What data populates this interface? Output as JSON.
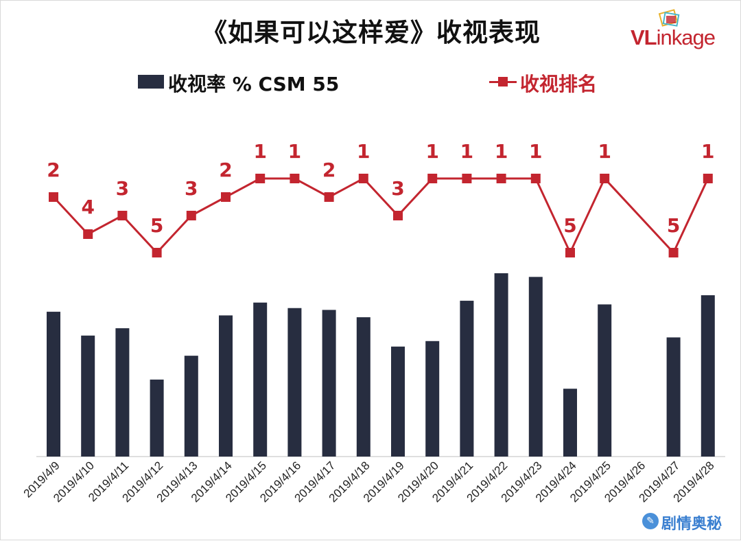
{
  "title": "《如果可以这样爱》收视表现",
  "logo": {
    "v": "VL",
    "rest": "inkage"
  },
  "legend": {
    "bar_label": "收视率 % CSM 55",
    "line_label": "收视排名"
  },
  "watermark": {
    "icon": "tencent-news-icon",
    "text": "剧情奥秘"
  },
  "colors": {
    "bar": "#272d40",
    "line": "#c3252f",
    "title": "#111111"
  },
  "chart_data": {
    "type": "bar",
    "title": "《如果可以这样爱》收视表现",
    "categories": [
      "2019/4/9",
      "2019/4/10",
      "2019/4/11",
      "2019/4/12",
      "2019/4/13",
      "2019/4/14",
      "2019/4/15",
      "2019/4/16",
      "2019/4/17",
      "2019/4/18",
      "2019/4/19",
      "2019/4/20",
      "2019/4/21",
      "2019/4/22",
      "2019/4/23",
      "2019/4/24",
      "2019/4/25",
      "2019/4/26",
      "2019/4/27",
      "2019/4/28"
    ],
    "series": [
      {
        "name": "收视率 % CSM 55",
        "type": "bar",
        "values": [
          0.79,
          0.66,
          0.7,
          0.42,
          0.55,
          0.77,
          0.84,
          0.81,
          0.8,
          0.76,
          0.6,
          0.63,
          0.85,
          1.0,
          0.98,
          0.37,
          0.83,
          null,
          0.65,
          0.88
        ]
      },
      {
        "name": "收视排名",
        "type": "line",
        "values": [
          2,
          4,
          3,
          5,
          3,
          2,
          1,
          1,
          2,
          1,
          3,
          1,
          1,
          1,
          1,
          5,
          1,
          null,
          5,
          1
        ]
      }
    ],
    "rank_range": [
      1,
      5
    ],
    "grid": false,
    "legend_position": "top"
  }
}
